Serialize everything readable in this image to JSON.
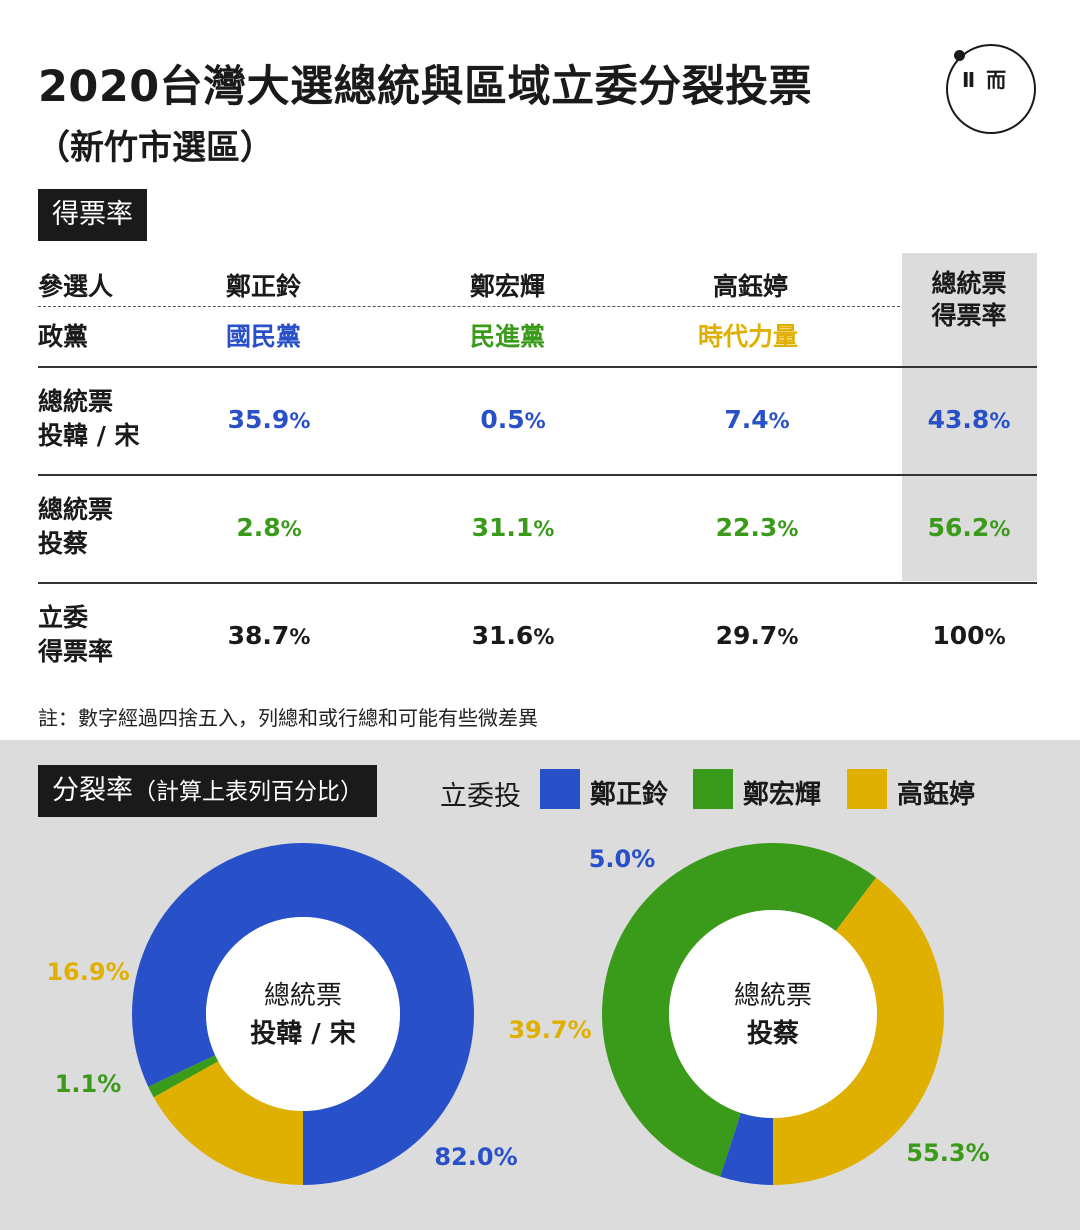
{
  "title": "2020台灣大選總統與區域立委分裂投票",
  "subtitle": "（新竹市選區）",
  "logo_text": "Ⅱ 而",
  "section1_tag": "得票率",
  "table": {
    "header_candidate": "參選人",
    "header_party": "政黨",
    "header_presidential_rate": "總統票\n得票率",
    "candidates": [
      "鄭正鈴",
      "鄭宏輝",
      "高鈺婷"
    ],
    "parties": [
      "國民黨",
      "民進黨",
      "時代力量"
    ],
    "rows": [
      {
        "label": "總統票\n投韓 / 宋",
        "values": [
          "35.9",
          "0.5",
          "7.4"
        ],
        "total": "43.8"
      },
      {
        "label": "總統票\n投蔡",
        "values": [
          "2.8",
          "31.1",
          "22.3"
        ],
        "total": "56.2"
      },
      {
        "label": "立委\n得票率",
        "values": [
          "38.7",
          "31.6",
          "29.7"
        ],
        "total": "100"
      }
    ],
    "pct_sign": "%"
  },
  "note": "註：數字經過四捨五入，列總和或行總和可能有些微差異",
  "section2_tag": "分裂率",
  "section2_tag_sub": "（計算上表列百分比）",
  "legend_title": "立委投",
  "colors": {
    "kmt": "#2850c8",
    "dpp": "#3a9a1a",
    "npp": "#e0b000"
  },
  "chart_data": [
    {
      "type": "pie",
      "center_label": [
        "總統票",
        "投韓 / 宋"
      ],
      "categories": [
        "鄭正鈴",
        "鄭宏輝",
        "高鈺婷"
      ],
      "values": [
        82.0,
        1.1,
        16.9
      ],
      "labels": [
        "82.0%",
        "1.1%",
        "16.9%"
      ]
    },
    {
      "type": "pie",
      "center_label": [
        "總統票",
        "投蔡"
      ],
      "categories": [
        "鄭正鈴",
        "鄭宏輝",
        "高鈺婷"
      ],
      "values": [
        5.0,
        55.3,
        39.7
      ],
      "labels": [
        "5.0%",
        "55.3%",
        "39.7%"
      ]
    }
  ]
}
